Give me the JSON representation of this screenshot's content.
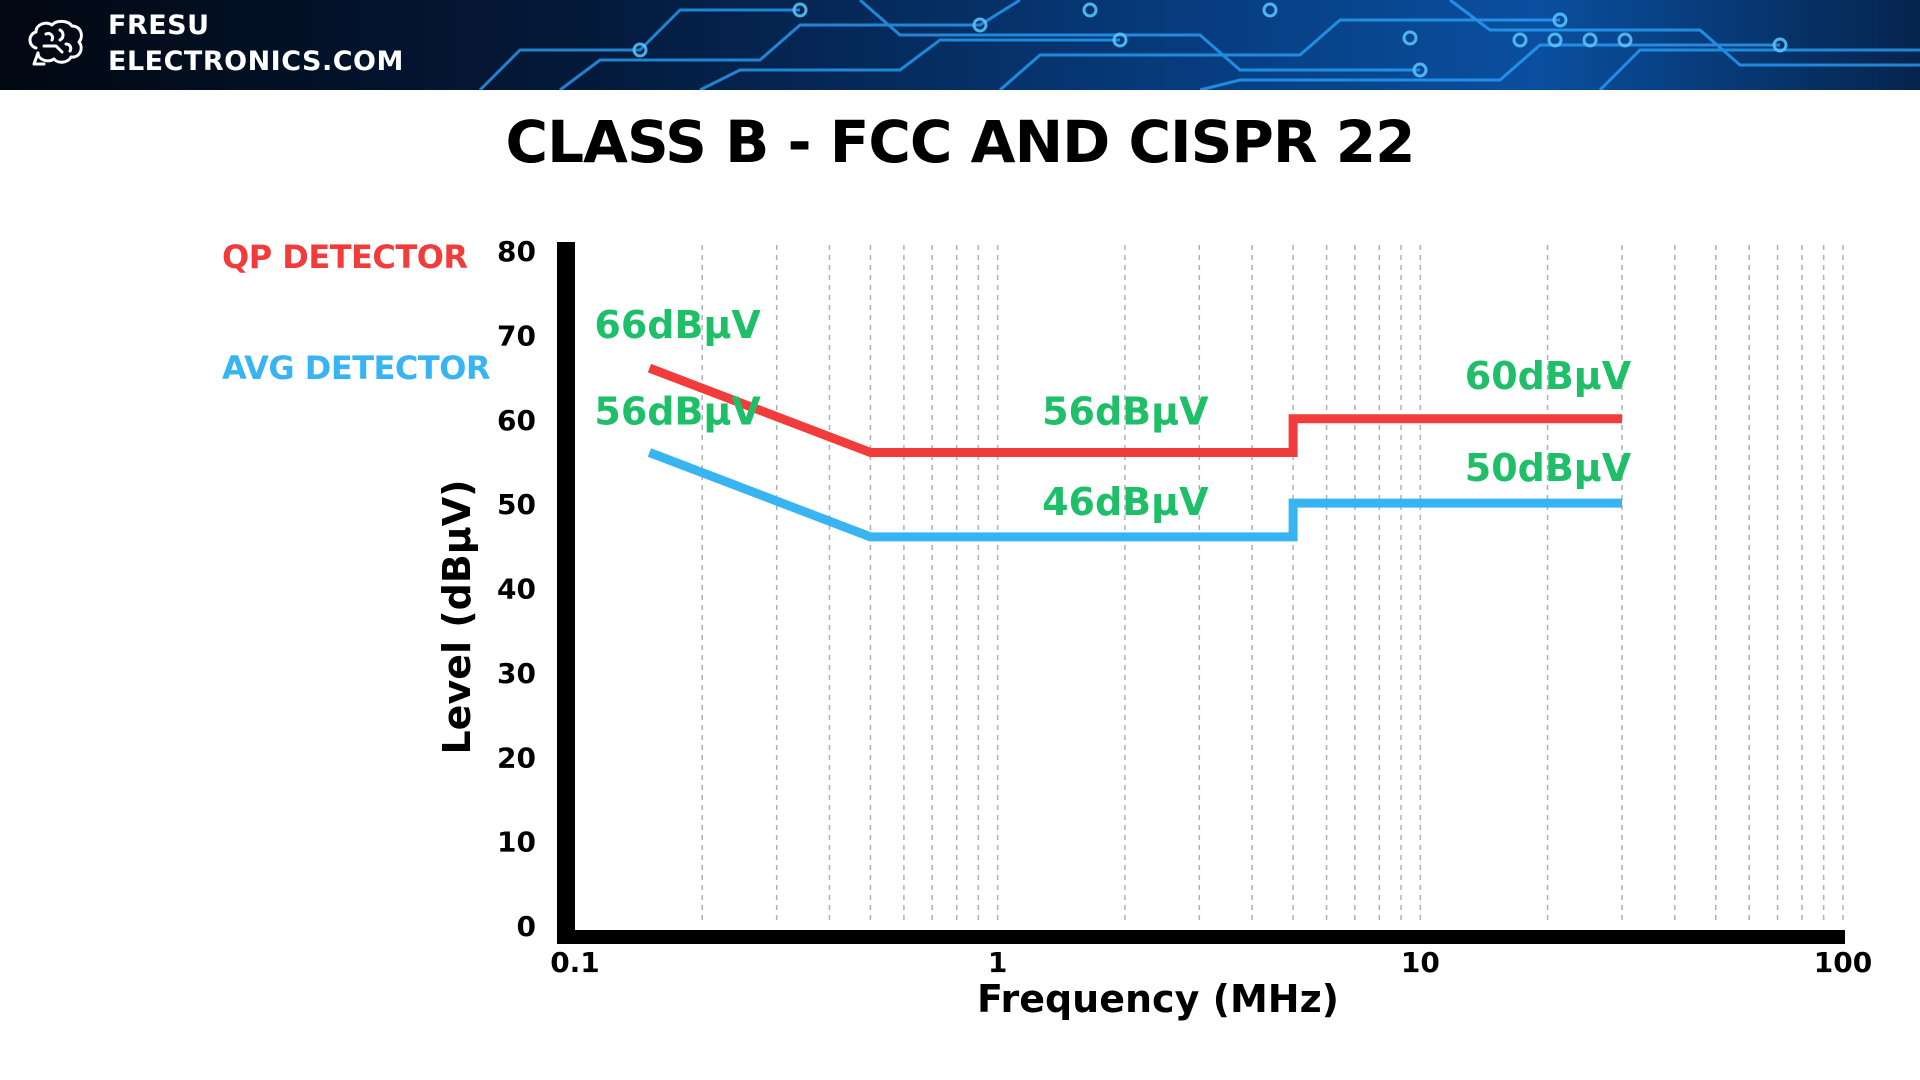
{
  "header": {
    "brand_line1": "FRESU",
    "brand_line2": "ELECTRONICS.COM",
    "logo_icon": "brain-icon"
  },
  "legend": {
    "qp_label": "QP DETECTOR",
    "avg_label": "AVG DETECTOR"
  },
  "colors": {
    "qp": "#f23b3b",
    "avg": "#39b4f2",
    "annotation": "#1fbf6a",
    "axis": "#000000",
    "grid": "#b0b0b0"
  },
  "chart_data": {
    "type": "line",
    "title": "CLASS B - FCC AND CISPR 22",
    "xlabel": "Frequency (MHz)",
    "ylabel": "Level (dBµV)",
    "x_scale": "log",
    "xlim": [
      0.1,
      100
    ],
    "ylim": [
      0,
      80
    ],
    "x_ticks": [
      0.1,
      1,
      10,
      100
    ],
    "x_tick_labels": [
      "0.1",
      "1",
      "10",
      "100"
    ],
    "y_ticks": [
      0,
      10,
      20,
      30,
      40,
      50,
      60,
      70,
      80
    ],
    "y_tick_labels": [
      "0",
      "10",
      "20",
      "30",
      "40",
      "50",
      "60",
      "70",
      "80"
    ],
    "grid": "vertical dashed at log minor ticks",
    "series": [
      {
        "name": "QP DETECTOR",
        "color": "#f23b3b",
        "points": [
          [
            0.15,
            66
          ],
          [
            0.5,
            56
          ],
          [
            5,
            56
          ],
          [
            5,
            60
          ],
          [
            30,
            60
          ]
        ]
      },
      {
        "name": "AVG DETECTOR",
        "color": "#39b4f2",
        "points": [
          [
            0.15,
            56
          ],
          [
            0.5,
            46
          ],
          [
            5,
            46
          ],
          [
            5,
            50
          ],
          [
            30,
            50
          ]
        ]
      }
    ],
    "annotations": [
      {
        "text": "66dBµV",
        "series": "QP DETECTOR",
        "x": 0.15,
        "y": 66
      },
      {
        "text": "56dBµV",
        "series": "AVG DETECTOR",
        "x": 0.15,
        "y": 56
      },
      {
        "text": "56dBµV",
        "series": "QP DETECTOR",
        "x": 1.5,
        "y": 56
      },
      {
        "text": "46dBµV",
        "series": "AVG DETECTOR",
        "x": 1.5,
        "y": 46
      },
      {
        "text": "60dBµV",
        "series": "QP DETECTOR",
        "x": 15,
        "y": 60
      },
      {
        "text": "50dBµV",
        "series": "AVG DETECTOR",
        "x": 15,
        "y": 50
      }
    ]
  }
}
